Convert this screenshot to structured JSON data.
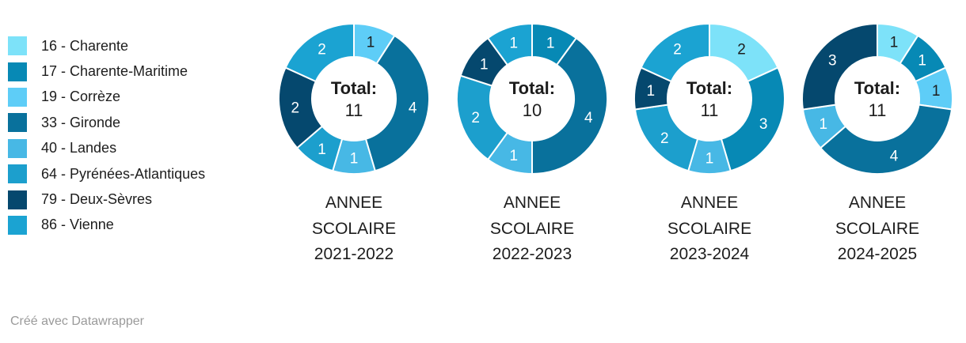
{
  "chart_data": {
    "type": "pie",
    "variant": "multiple-donuts",
    "legend_position": "top-left",
    "background_color": "#ffffff",
    "text_color": "#1d1d1d",
    "categories": [
      {
        "label": "16 - Charente",
        "color": "#7de2f9"
      },
      {
        "label": "17 - Charente-Maritime",
        "color": "#0789b5"
      },
      {
        "label": "19 - Corrèze",
        "color": "#5ecdf7"
      },
      {
        "label": "33 - Gironde",
        "color": "#09719c"
      },
      {
        "label": "40 - Landes",
        "color": "#47b8e5"
      },
      {
        "label": "64 - Pyrénées-Atlantiques",
        "color": "#1c9fcd"
      },
      {
        "label": "79 - Deux-Sèvres",
        "color": "#05486e"
      },
      {
        "label": "86 - Vienne",
        "color": "#1ba3d2"
      }
    ],
    "pies": [
      {
        "title": "ANNEE SCOLAIRE 2021-2022",
        "title_lines": [
          "ANNEE",
          "SCOLAIRE",
          "2021-2022"
        ],
        "center_label": "Total:",
        "total": 11,
        "slices": [
          {
            "label": "19 - Corrèze",
            "value": 1
          },
          {
            "label": "33 - Gironde",
            "value": 4
          },
          {
            "label": "40 - Landes",
            "value": 1
          },
          {
            "label": "64 - Pyrénées-Atlantiques",
            "value": 1
          },
          {
            "label": "79 - Deux-Sèvres",
            "value": 2
          },
          {
            "label": "86 - Vienne",
            "value": 2
          }
        ]
      },
      {
        "title": "ANNEE SCOLAIRE 2022-2023",
        "title_lines": [
          "ANNEE",
          "SCOLAIRE",
          "2022-2023"
        ],
        "center_label": "Total:",
        "total": 10,
        "slices": [
          {
            "label": "17 - Charente-Maritime",
            "value": 1
          },
          {
            "label": "33 - Gironde",
            "value": 4
          },
          {
            "label": "40 - Landes",
            "value": 1
          },
          {
            "label": "64 - Pyrénées-Atlantiques",
            "value": 2
          },
          {
            "label": "79 - Deux-Sèvres",
            "value": 1
          },
          {
            "label": "86 - Vienne",
            "value": 1
          }
        ]
      },
      {
        "title": "ANNEE SCOLAIRE 2023-2024",
        "title_lines": [
          "ANNEE",
          "SCOLAIRE",
          "2023-2024"
        ],
        "center_label": "Total:",
        "total": 11,
        "slices": [
          {
            "label": "16 - Charente",
            "value": 2
          },
          {
            "label": "17 - Charente-Maritime",
            "value": 3
          },
          {
            "label": "40 - Landes",
            "value": 1
          },
          {
            "label": "64 - Pyrénées-Atlantiques",
            "value": 2
          },
          {
            "label": "79 - Deux-Sèvres",
            "value": 1
          },
          {
            "label": "86 - Vienne",
            "value": 2
          }
        ]
      },
      {
        "title": "ANNEE SCOLAIRE 2024-2025",
        "title_lines": [
          "ANNEE",
          "SCOLAIRE",
          "2024-2025"
        ],
        "center_label": "Total:",
        "total": 11,
        "slices": [
          {
            "label": "16 - Charente",
            "value": 1
          },
          {
            "label": "17 - Charente-Maritime",
            "value": 1
          },
          {
            "label": "19 - Corrèze",
            "value": 1
          },
          {
            "label": "33 - Gironde",
            "value": 4
          },
          {
            "label": "40 - Landes",
            "value": 1
          },
          {
            "label": "79 - Deux-Sèvres",
            "value": 3
          }
        ]
      }
    ]
  },
  "footer": {
    "credit": "Créé avec Datawrapper"
  }
}
